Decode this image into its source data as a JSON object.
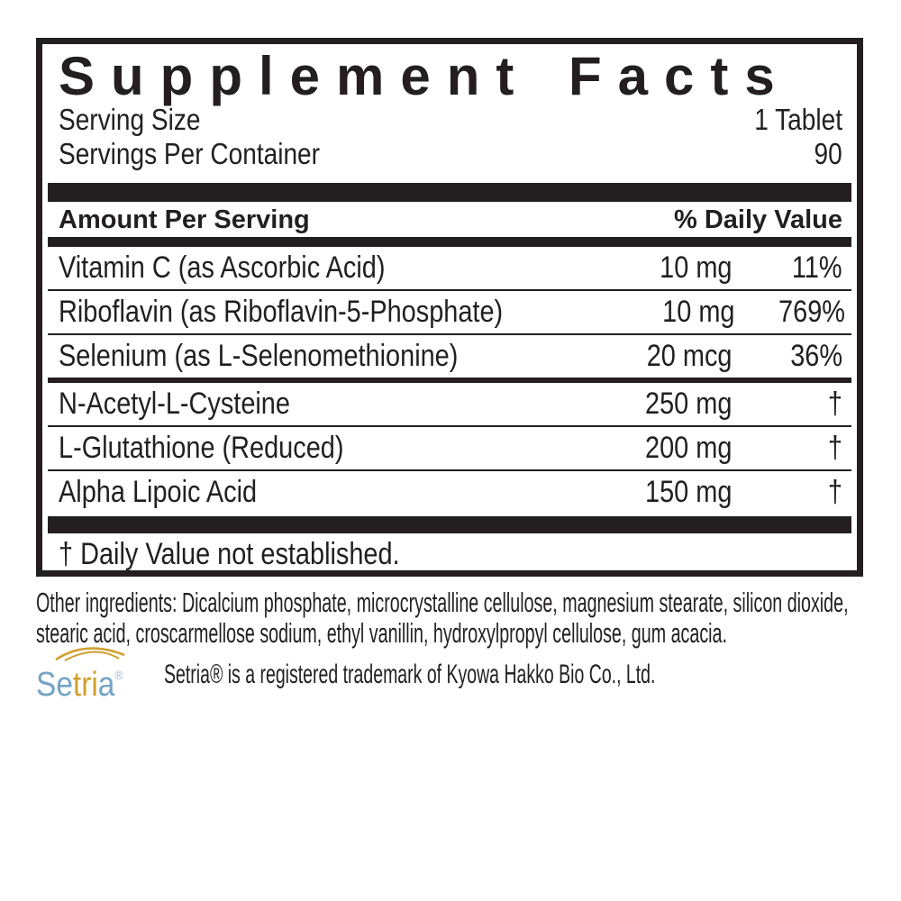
{
  "panel": {
    "title": "Supplement Facts",
    "serving_size_label": "Serving Size",
    "serving_size_value": "1 Tablet",
    "servings_per_container_label": "Servings Per Container",
    "servings_per_container_value": "90",
    "columns": {
      "amount": "Amount Per Serving",
      "daily_value": "% Daily Value"
    },
    "rows": [
      {
        "name": "Vitamin C (as Ascorbic Acid)",
        "amount": "10 mg",
        "daily_value": "11%"
      },
      {
        "name": "Riboflavin (as Riboflavin-5-Phosphate)",
        "amount": "10 mg",
        "daily_value": "769%"
      },
      {
        "name": "Selenium (as L-Selenomethionine)",
        "amount": "20 mcg",
        "daily_value": "36%"
      },
      {
        "name": "N-Acetyl-L-Cysteine",
        "amount": "250 mg",
        "daily_value": "†"
      },
      {
        "name": "L-Glutathione (Reduced)",
        "amount": "200 mg",
        "daily_value": "†"
      },
      {
        "name": "Alpha Lipoic Acid",
        "amount": "150 mg",
        "daily_value": "†"
      }
    ],
    "footnote": "† Daily Value not established."
  },
  "other_ingredients": {
    "text": "Other ingredients: Dicalcium phosphate, microcrystalline cellulose, magnesium stearate, silicon dioxide, stearic acid, croscarmellose sodium, ethyl vanillin, hydroxylpropyl cellulose, gum acacia."
  },
  "setria": {
    "logo_text": "Setria",
    "logo_reg": "®",
    "letter_colors": [
      "blue",
      "blue",
      "gold",
      "gold",
      "gold",
      "blue"
    ],
    "trademark_line": "Setria® is a registered trademark of Kyowa Hakko Bio Co., Ltd.",
    "colors": {
      "blue": "#74a3c4",
      "gold": "#d0a02f"
    }
  },
  "colors": {
    "text": "#231f20",
    "background": "#ffffff"
  }
}
